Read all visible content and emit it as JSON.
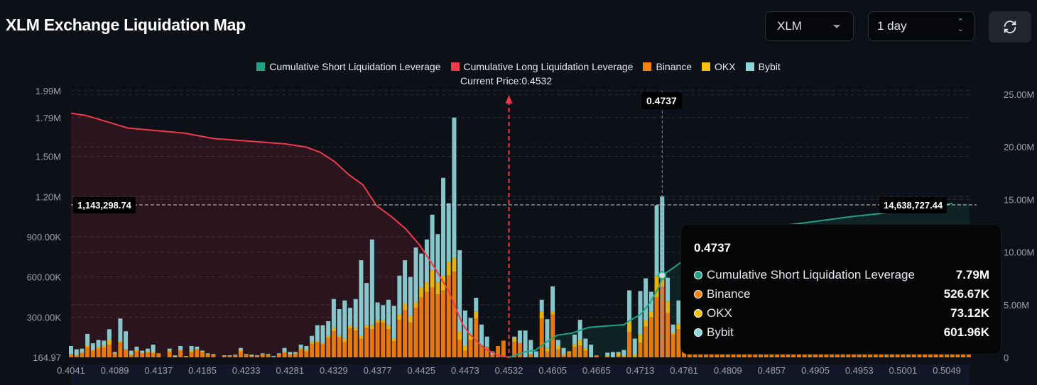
{
  "header": {
    "title": "XLM Exchange Liquidation Map"
  },
  "controls": {
    "symbol": "XLM",
    "period": "1 day",
    "refresh_icon": "refresh-icon"
  },
  "legend": [
    {
      "label": "Cumulative Short Liquidation Leverage",
      "color": "#1fa386"
    },
    {
      "label": "Cumulative Long Liquidation Leverage",
      "color": "#ef3a4c"
    },
    {
      "label": "Binance",
      "color": "#f7820f"
    },
    {
      "label": "OKX",
      "color": "#f5c10c"
    },
    {
      "label": "Bybit",
      "color": "#8fd6da"
    }
  ],
  "current_price_label": "Current Price:0.4532",
  "crosshair": {
    "left_value": "1,143,298.74",
    "right_value": "14,638,727.44",
    "x_value": "0.4737"
  },
  "tooltip": {
    "title": "0.4737",
    "rows": [
      {
        "label": "Cumulative Short Liquidation Leverage",
        "value": "7.79M",
        "color": "#1fa386"
      },
      {
        "label": "Binance",
        "value": "526.67K",
        "color": "#f7820f"
      },
      {
        "label": "OKX",
        "value": "73.12K",
        "color": "#f5c10c"
      },
      {
        "label": "Bybit",
        "value": "601.96K",
        "color": "#8fd6da"
      }
    ]
  },
  "chart_data": {
    "type": "bar",
    "title": "",
    "current_price": 0.4532,
    "x_ticks": [
      "0.4041",
      "0.4089",
      "0.4137",
      "0.4185",
      "0.4233",
      "0.4281",
      "0.4329",
      "0.4377",
      "0.4425",
      "0.4473",
      "0.4532",
      "0.4605",
      "0.4665",
      "0.4713",
      "0.4761",
      "0.4809",
      "0.4857",
      "0.4905",
      "0.4953",
      "0.5001",
      "0.5049"
    ],
    "left_axis": {
      "unit": "K",
      "ylim": [
        0,
        1990
      ],
      "ticks": [
        {
          "label": "164.97",
          "value": 0.165
        },
        {
          "label": "300.00K",
          "value": 300
        },
        {
          "label": "600.00K",
          "value": 600
        },
        {
          "label": "900.00K",
          "value": 900
        },
        {
          "label": "1.20M",
          "value": 1200
        },
        {
          "label": "1.50M",
          "value": 1500
        },
        {
          "label": "1.79M",
          "value": 1790
        },
        {
          "label": "1.99M",
          "value": 1990
        }
      ]
    },
    "right_axis": {
      "unit": "M",
      "ylim": [
        0,
        25.34
      ],
      "ticks": [
        {
          "label": "0",
          "value": 0
        },
        {
          "label": "5.00M",
          "value": 5
        },
        {
          "label": "10.00M",
          "value": 10
        },
        {
          "label": "15.00M",
          "value": 15
        },
        {
          "label": "20.00M",
          "value": 20
        },
        {
          "label": "25.00M",
          "value": 25
        }
      ]
    },
    "grid": true,
    "legend_position": "top",
    "series": [
      {
        "name": "Binance",
        "color": "#f7820f",
        "axis": "left",
        "values": [
          20,
          15,
          30,
          75,
          50,
          65,
          75,
          95,
          25,
          110,
          60,
          15,
          45,
          30,
          40,
          30,
          25,
          0,
          45,
          5,
          50,
          5,
          40,
          60,
          40,
          20,
          20,
          0,
          10,
          10,
          15,
          45,
          20,
          15,
          10,
          25,
          15,
          5,
          20,
          35,
          20,
          25,
          60,
          45,
          100,
          110,
          95,
          145,
          195,
          150,
          115,
          215,
          200,
          140,
          220,
          210,
          260,
          260,
          210,
          120,
          280,
          350,
          260,
          370,
          450,
          490,
          520,
          470,
          500,
          610,
          640,
          130,
          50,
          130,
          290,
          90,
          80,
          20,
          85,
          125,
          0,
          115,
          105,
          0,
          20,
          0,
          290,
          45,
          320,
          60,
          10,
          35,
          80,
          90,
          50,
          0,
          15,
          0,
          5,
          0,
          10,
          5,
          190,
          5,
          110,
          230,
          300,
          450,
          526.67,
          330,
          170,
          210,
          55,
          40,
          35,
          30,
          25,
          30,
          35,
          25,
          20,
          30,
          35,
          25,
          30,
          25,
          20,
          25,
          30,
          35,
          25,
          20,
          25,
          30,
          25,
          20,
          25,
          30,
          25,
          20,
          25,
          30,
          35,
          25,
          20,
          25,
          30,
          25,
          25,
          20,
          25,
          30,
          25,
          20,
          25,
          30,
          25,
          35,
          30,
          25,
          20,
          25,
          30,
          25,
          35
        ]
      },
      {
        "name": "OKX",
        "color": "#f5c10c",
        "axis": "left",
        "values": [
          5,
          3,
          8,
          10,
          8,
          10,
          10,
          35,
          5,
          10,
          0,
          5,
          10,
          5,
          5,
          10,
          5,
          0,
          5,
          3,
          5,
          5,
          10,
          0,
          5,
          5,
          0,
          0,
          0,
          0,
          0,
          10,
          0,
          2,
          0,
          0,
          5,
          0,
          5,
          5,
          5,
          5,
          10,
          10,
          15,
          10,
          10,
          15,
          25,
          15,
          25,
          20,
          20,
          20,
          20,
          30,
          20,
          20,
          30,
          20,
          40,
          50,
          50,
          40,
          70,
          70,
          130,
          90,
          110,
          100,
          100,
          60,
          35,
          40,
          50,
          0,
          0,
          0,
          0,
          0,
          0,
          30,
          0,
          0,
          5,
          0,
          50,
          25,
          25,
          25,
          10,
          10,
          20,
          40,
          20,
          0,
          0,
          0,
          10,
          0,
          20,
          10,
          80,
          15,
          60,
          45,
          40,
          160,
          73.12,
          90,
          10,
          40,
          0,
          0,
          0,
          0,
          0,
          0,
          0,
          0,
          0,
          0,
          0,
          0,
          0,
          0,
          0,
          0,
          0,
          0,
          0,
          0,
          0,
          0,
          0,
          0,
          0,
          0,
          0,
          0,
          0,
          0,
          0,
          0,
          0,
          0,
          0,
          0,
          0,
          0,
          0,
          0,
          0,
          0,
          0,
          0,
          0,
          0,
          0,
          0,
          0,
          0,
          0
        ]
      },
      {
        "name": "Bybit",
        "color": "#8fd6da",
        "axis": "left",
        "values": [
          60,
          42,
          27,
          90,
          47,
          55,
          40,
          80,
          10,
          170,
          135,
          30,
          25,
          15,
          20,
          55,
          0,
          0,
          15,
          7,
          30,
          0,
          35,
          20,
          5,
          5,
          5,
          0,
          5,
          5,
          5,
          15,
          5,
          3,
          5,
          5,
          5,
          5,
          5,
          30,
          15,
          10,
          25,
          30,
          45,
          120,
          135,
          110,
          215,
          195,
          285,
          135,
          215,
          565,
          315,
          640,
          130,
          110,
          190,
          245,
          290,
          325,
          290,
          410,
          255,
          320,
          415,
          360,
          730,
          440,
          1050,
          610,
          265,
          125,
          105,
          155,
          75,
          25,
          0,
          0,
          0,
          10,
          95,
          200,
          105,
          45,
          90,
          215,
          185,
          45,
          50,
          0,
          70,
          150,
          70,
          95,
          0,
          0,
          20,
          40,
          10,
          40,
          230,
          120,
          325,
          315,
          150,
          525,
          601.96,
          175,
          65,
          175,
          5,
          5,
          5,
          5,
          5,
          5,
          5,
          5,
          5,
          5,
          5,
          5,
          5,
          5,
          5,
          10,
          5,
          5,
          5,
          5,
          5,
          5,
          5,
          5,
          5,
          5,
          5,
          5,
          5,
          5,
          5,
          5,
          5,
          5,
          5,
          5,
          5,
          5,
          5,
          5,
          5,
          5,
          5,
          5,
          5,
          5,
          5,
          5,
          5,
          5,
          5
        ]
      },
      {
        "name": "Cumulative Long Liquidation Leverage",
        "color": "#ef3a4c",
        "axis": "right",
        "type": "area",
        "points": [
          [
            0.4041,
            23.2
          ],
          [
            0.4057,
            23.0
          ],
          [
            0.4088,
            22.2
          ],
          [
            0.4103,
            21.8
          ],
          [
            0.4166,
            21.3
          ],
          [
            0.4197,
            20.8
          ],
          [
            0.4244,
            20.5
          ],
          [
            0.4275,
            20.3
          ],
          [
            0.4298,
            20.0
          ],
          [
            0.4314,
            19.5
          ],
          [
            0.433,
            18.6
          ],
          [
            0.4345,
            17.4
          ],
          [
            0.4361,
            16.4
          ],
          [
            0.4376,
            14.4
          ],
          [
            0.4392,
            13.4
          ],
          [
            0.4408,
            12.2
          ],
          [
            0.4423,
            10.7
          ],
          [
            0.4439,
            8.6
          ],
          [
            0.4455,
            6.3
          ],
          [
            0.447,
            3.2
          ],
          [
            0.4479,
            2.2
          ],
          [
            0.4498,
            0.9
          ],
          [
            0.4517,
            0.2
          ],
          [
            0.4532,
            0
          ]
        ]
      },
      {
        "name": "Cumulative Short Liquidation Leverage",
        "color": "#1fa386",
        "axis": "right",
        "type": "area",
        "points": [
          [
            0.4532,
            0
          ],
          [
            0.456,
            0.54
          ],
          [
            0.4576,
            0.68
          ],
          [
            0.4592,
            1.35
          ],
          [
            0.4611,
            2.1
          ],
          [
            0.4631,
            2.3
          ],
          [
            0.4654,
            2.84
          ],
          [
            0.4674,
            2.97
          ],
          [
            0.4695,
            3.1
          ],
          [
            0.4703,
            3.58
          ],
          [
            0.4713,
            4.05
          ],
          [
            0.4723,
            5.1
          ],
          [
            0.4734,
            6.76
          ],
          [
            0.4737,
            7.79
          ],
          [
            0.4749,
            8.5
          ],
          [
            0.4757,
            9.0
          ],
          [
            0.479,
            10.3
          ],
          [
            0.4829,
            11.6
          ],
          [
            0.4868,
            12.5
          ],
          [
            0.4946,
            13.4
          ],
          [
            0.5024,
            14.1
          ],
          [
            0.5055,
            14.64
          ]
        ]
      }
    ]
  }
}
